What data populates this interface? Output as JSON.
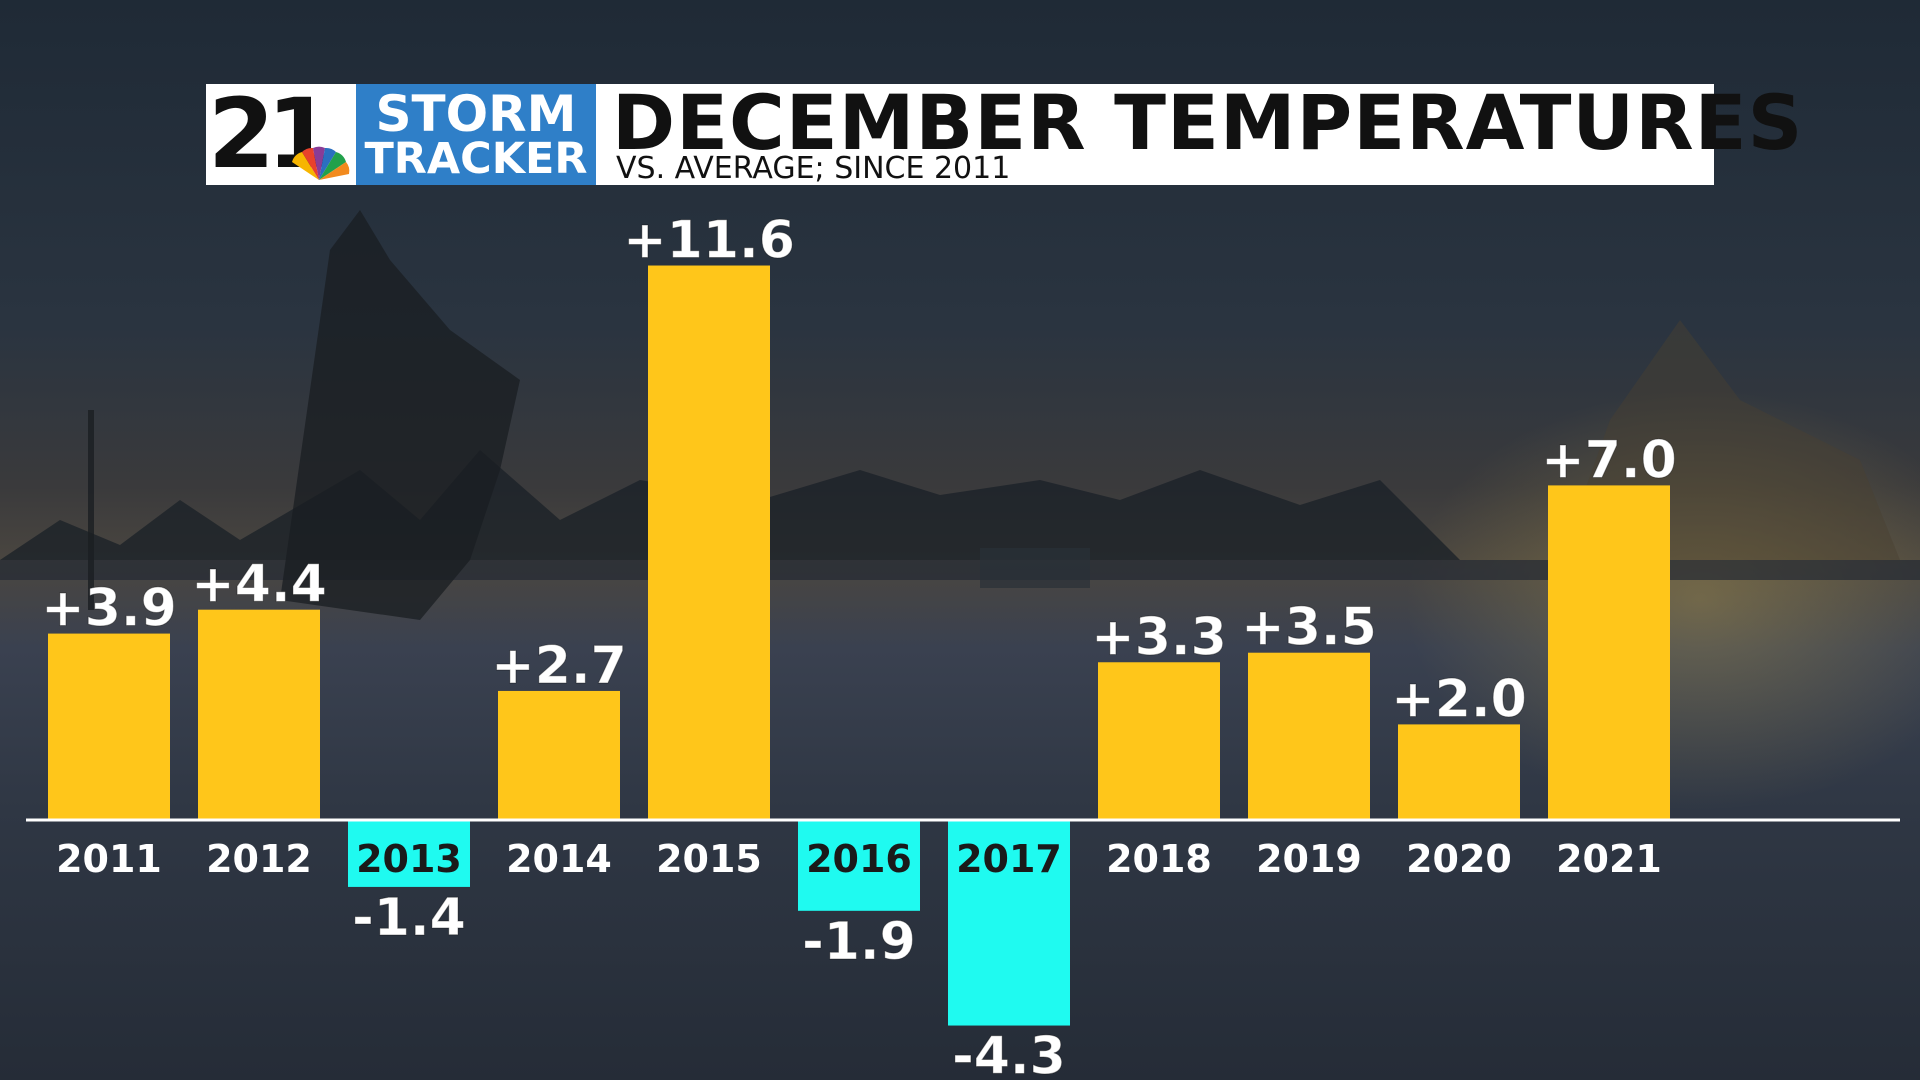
{
  "logo": {
    "number": "21",
    "line1": "STORM",
    "line2": "TRACKER"
  },
  "title": "DECEMBER TEMPERATURES",
  "subtitle": "VS. AVERAGE; SINCE 2011",
  "colors": {
    "positive_bar": "#ffc61a",
    "negative_bar": "#1ffaf0",
    "baseline": "#ffffff",
    "logo_blue": "#2f7fc8"
  },
  "chart_data": {
    "type": "bar",
    "categories": [
      "2011",
      "2012",
      "2013",
      "2014",
      "2015",
      "2016",
      "2017",
      "2018",
      "2019",
      "2020",
      "2021"
    ],
    "values": [
      3.9,
      4.4,
      -1.4,
      2.7,
      11.6,
      -1.9,
      -4.3,
      3.3,
      3.5,
      2.0,
      7.0
    ],
    "labels": [
      "+3.9",
      "+4.4",
      "-1.4",
      "+2.7",
      "+11.6",
      "-1.9",
      "-4.3",
      "+3.3",
      "+3.5",
      "+2.0",
      "+7.0"
    ],
    "title": "DECEMBER TEMPERATURES",
    "subtitle": "VS. AVERAGE; SINCE 2011",
    "xlabel": "",
    "ylabel": "",
    "ylim": [
      -4.3,
      11.6
    ],
    "grid": false,
    "legend": "none"
  }
}
